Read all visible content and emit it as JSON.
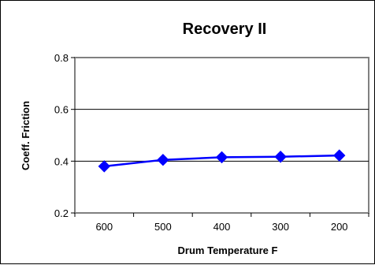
{
  "chart_data": {
    "type": "line",
    "title": "Recovery II",
    "xlabel": "Drum Temperature F",
    "ylabel": "Coeff. Friction",
    "categories": [
      "600",
      "500",
      "400",
      "300",
      "200"
    ],
    "series": [
      {
        "values": [
          0.38,
          0.405,
          0.415,
          0.417,
          0.422
        ]
      }
    ],
    "ylim": [
      0.2,
      0.8
    ],
    "yticks": [
      "0.2",
      "0.4",
      "0.6",
      "0.8"
    ],
    "grid": "horizontal",
    "legend": "none",
    "colors": {
      "series": "#0000ff",
      "plot_border": "#808080",
      "grid": "#000000"
    }
  }
}
